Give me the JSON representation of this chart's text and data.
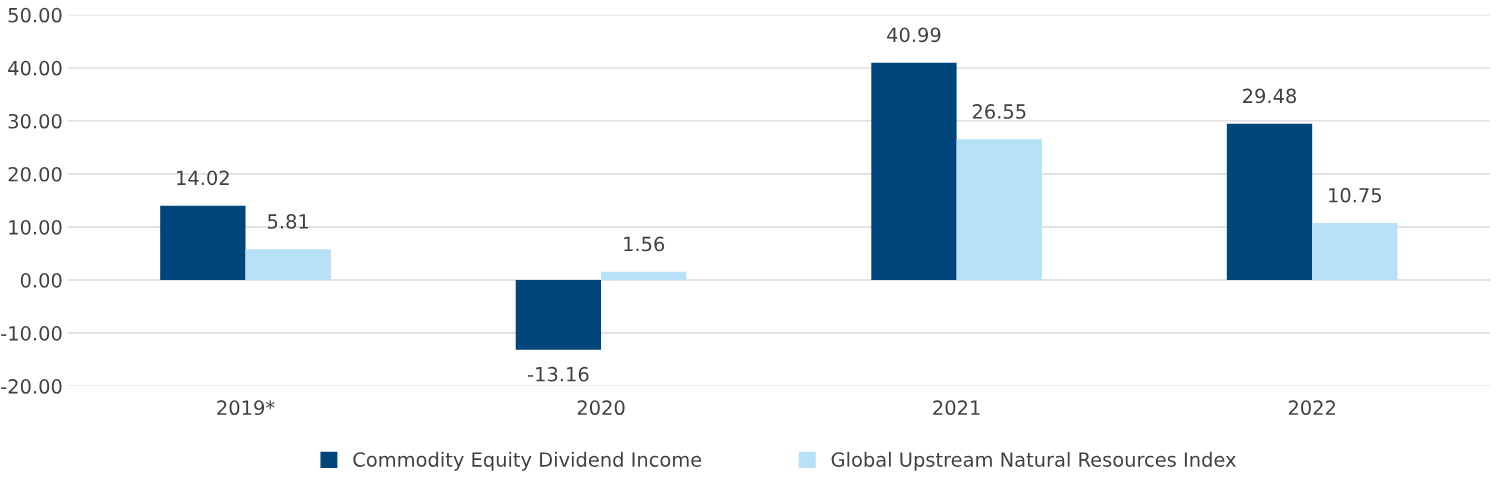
{
  "chart_data": {
    "type": "bar",
    "categories": [
      "2019*",
      "2020",
      "2021",
      "2022"
    ],
    "series": [
      {
        "name": "Commodity Equity Dividend Income",
        "color": "#00467a",
        "values": [
          14.02,
          -13.16,
          40.99,
          29.48
        ]
      },
      {
        "name": "Global Upstream Natural Resources Index",
        "color": "#b6e1f7",
        "values": [
          5.81,
          1.56,
          26.55,
          10.75
        ]
      }
    ],
    "ylim": [
      -20,
      50
    ],
    "yticks": [
      {
        "value": -20,
        "label": "-20.00"
      },
      {
        "value": -10,
        "label": "-10.00"
      },
      {
        "value": 0,
        "label": "0.00"
      },
      {
        "value": 10,
        "label": "10.00"
      },
      {
        "value": 20,
        "label": "20.00"
      },
      {
        "value": 30,
        "label": "30.00"
      },
      {
        "value": 40,
        "label": "40.00"
      },
      {
        "value": 50,
        "label": "50.00"
      }
    ],
    "grid": "y",
    "legend": "bottom",
    "data_labels": true
  }
}
